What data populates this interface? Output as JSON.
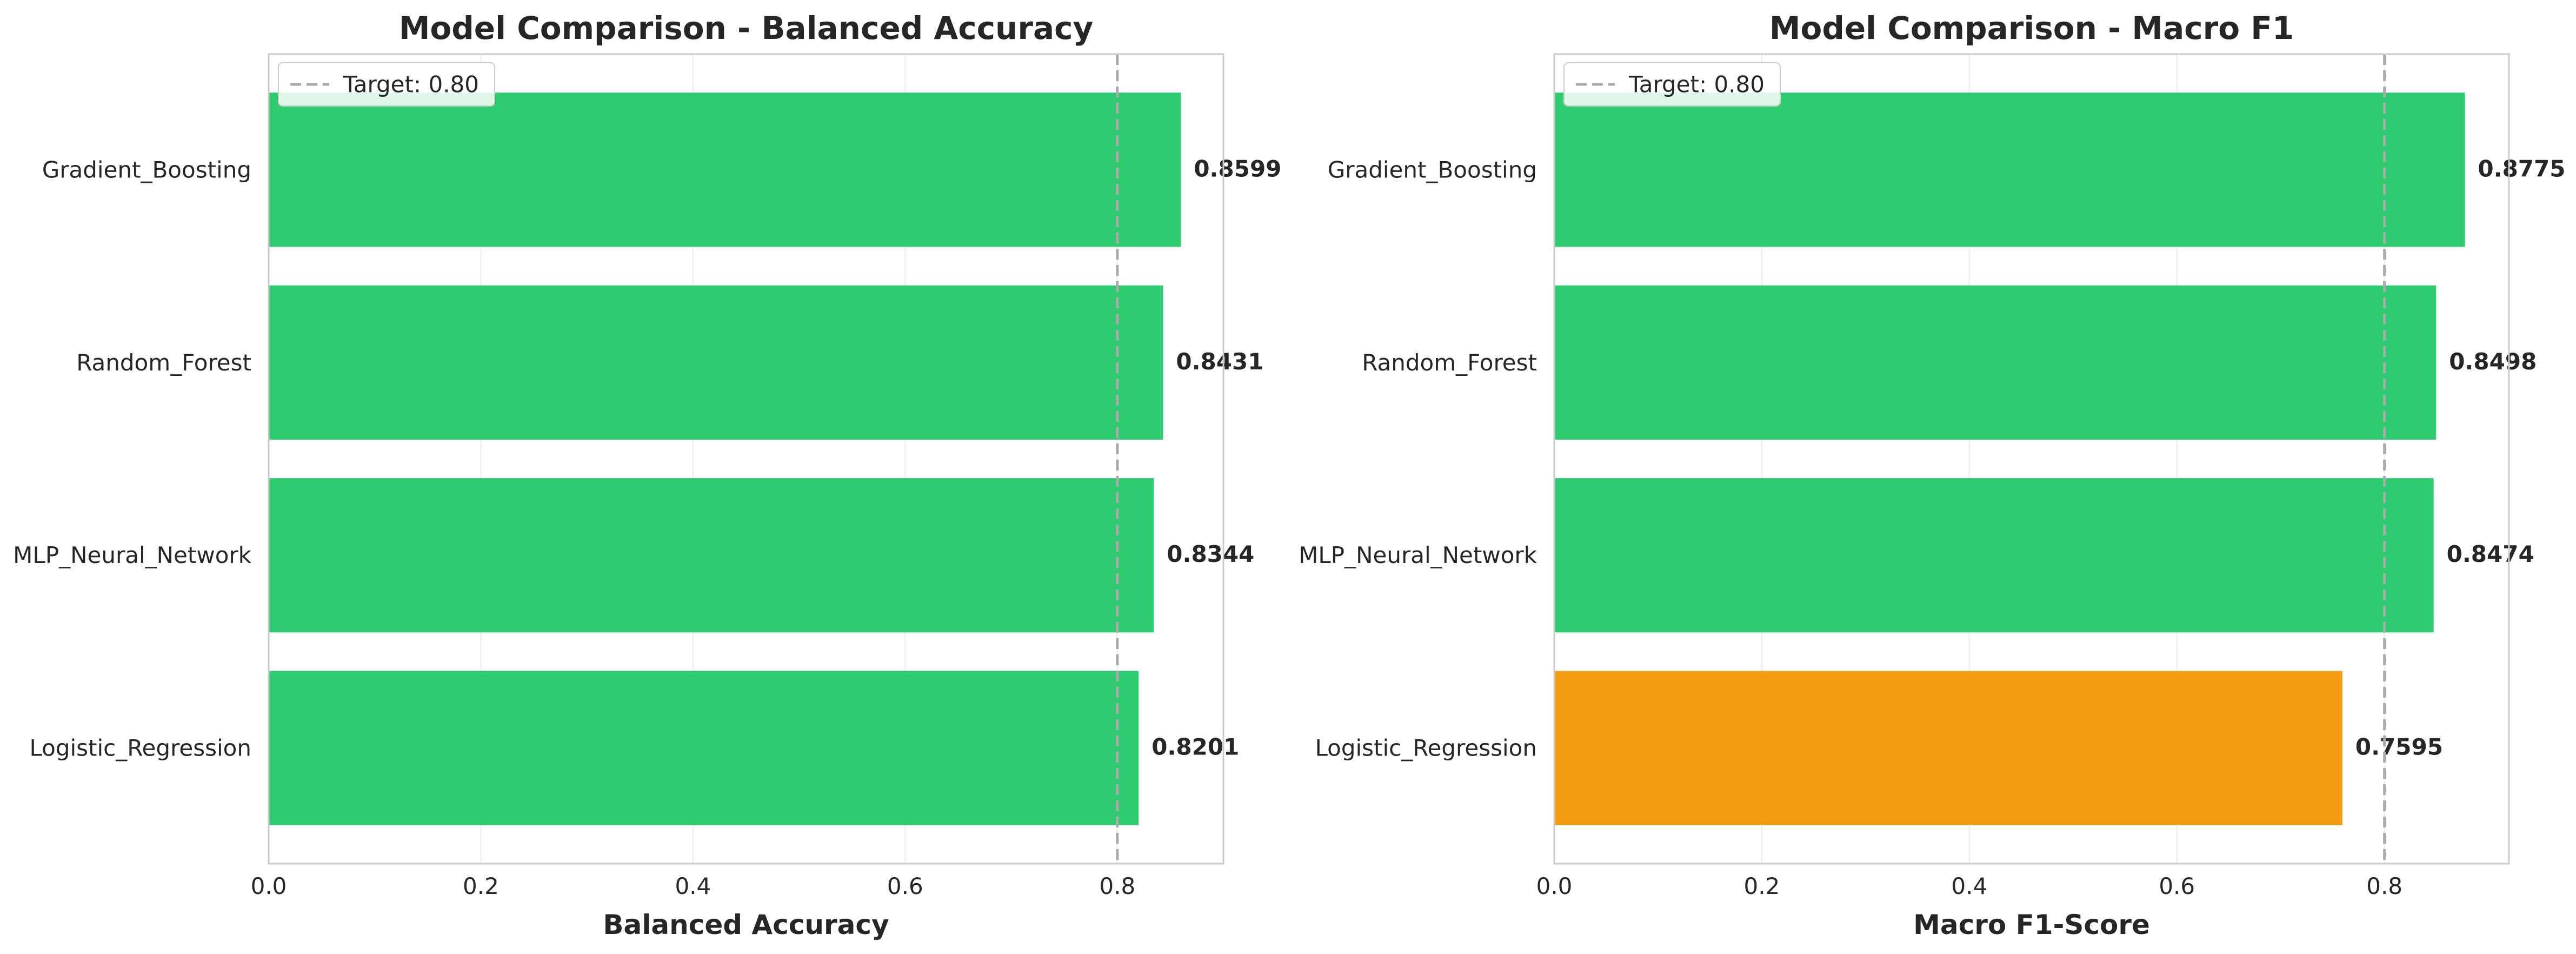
{
  "chart_data": [
    {
      "type": "bar",
      "orientation": "horizontal",
      "title": "Model Comparison - Balanced Accuracy",
      "xlabel": "Balanced Accuracy",
      "ylabel": "",
      "categories": [
        "Gradient_Boosting",
        "Random_Forest",
        "MLP_Neural_Network",
        "Logistic_Regression"
      ],
      "values": [
        0.8599,
        0.8431,
        0.8344,
        0.8201
      ],
      "value_labels": [
        "0.8599",
        "0.8431",
        "0.8344",
        "0.8201"
      ],
      "bar_colors": [
        "#2ecc71",
        "#2ecc71",
        "#2ecc71",
        "#2ecc71"
      ],
      "xlim": [
        0,
        0.9
      ],
      "xticks": [
        0.0,
        0.2,
        0.4,
        0.6,
        0.8
      ],
      "xtick_labels": [
        "0.0",
        "0.2",
        "0.4",
        "0.6",
        "0.8"
      ],
      "target": {
        "value": 0.8,
        "label": "Target: 0.80",
        "color": "#aaaaaa",
        "style": "dashed"
      },
      "legend_position": "upper-left",
      "grid": true
    },
    {
      "type": "bar",
      "orientation": "horizontal",
      "title": "Model Comparison - Macro F1",
      "xlabel": "Macro F1-Score",
      "ylabel": "",
      "categories": [
        "Gradient_Boosting",
        "Random_Forest",
        "MLP_Neural_Network",
        "Logistic_Regression"
      ],
      "values": [
        0.8775,
        0.8498,
        0.8474,
        0.7595
      ],
      "value_labels": [
        "0.8775",
        "0.8498",
        "0.8474",
        "0.7595"
      ],
      "bar_colors": [
        "#2ecc71",
        "#2ecc71",
        "#2ecc71",
        "#f39c12"
      ],
      "xlim": [
        0,
        0.92
      ],
      "xticks": [
        0.0,
        0.2,
        0.4,
        0.6,
        0.8
      ],
      "xtick_labels": [
        "0.0",
        "0.2",
        "0.4",
        "0.6",
        "0.8"
      ],
      "target": {
        "value": 0.8,
        "label": "Target: 0.80",
        "color": "#aaaaaa",
        "style": "dashed"
      },
      "legend_position": "upper-left",
      "grid": true
    }
  ]
}
